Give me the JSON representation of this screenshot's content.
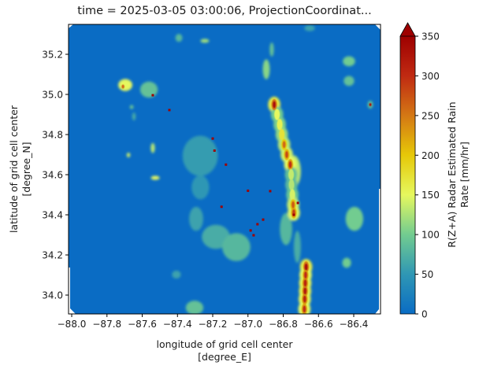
{
  "chart_data": {
    "type": "heatmap",
    "title": "time = 2025-03-05 03:00:06, ProjectionCoordinat...",
    "xlabel": [
      "longitude of grid cell center",
      "[degree_E]"
    ],
    "ylabel": [
      "latitude of grid cell center",
      "[degree_N]"
    ],
    "xlim": [
      -88.018,
      -86.248
    ],
    "ylim": [
      33.906,
      35.349
    ],
    "xticks": [
      -88.0,
      -87.8,
      -87.6,
      -87.4,
      -87.2,
      -87.0,
      -86.8,
      -86.6,
      -86.4
    ],
    "xtick_labels": [
      "−88.0",
      "−87.8",
      "−87.6",
      "−87.4",
      "−87.2",
      "−87.0",
      "−86.8",
      "−86.6",
      "−86.4"
    ],
    "yticks": [
      34.0,
      34.2,
      34.4,
      34.6,
      34.8,
      35.0,
      35.2
    ],
    "ytick_labels": [
      "34.0",
      "34.2",
      "34.4",
      "34.6",
      "34.8",
      "35.0",
      "35.2"
    ],
    "colorbar": {
      "label": [
        "R(Z+A) Radar Estimated Rain",
        "Rate [mm/hr]"
      ],
      "range": [
        0,
        350
      ],
      "extend": "max",
      "ticks": [
        0,
        50,
        100,
        150,
        200,
        250,
        300,
        350
      ],
      "tick_labels": [
        "0",
        "50",
        "100",
        "150",
        "200",
        "250",
        "300",
        "350"
      ],
      "colors": [
        "#0a6cc4",
        "#2f97b4",
        "#72cc90",
        "#e6f85e",
        "#e6c808",
        "#d47814",
        "#c02a12",
        "#9e0000"
      ]
    },
    "background_value": 0,
    "squall_line": [
      [
        -86.851,
        34.949,
        330
      ],
      [
        -86.835,
        34.9,
        200
      ],
      [
        -86.82,
        34.85,
        210
      ],
      [
        -86.808,
        34.8,
        230
      ],
      [
        -86.795,
        34.75,
        260
      ],
      [
        -86.78,
        34.7,
        280
      ],
      [
        -86.76,
        34.65,
        300
      ],
      [
        -86.755,
        34.6,
        180
      ],
      [
        -86.753,
        34.55,
        170
      ],
      [
        -86.748,
        34.5,
        190
      ],
      [
        -86.744,
        34.45,
        270
      ],
      [
        -86.74,
        34.41,
        290
      ],
      [
        -86.67,
        34.14,
        330
      ],
      [
        -86.673,
        34.1,
        300
      ],
      [
        -86.675,
        34.06,
        310
      ],
      [
        -86.676,
        34.02,
        320
      ],
      [
        -86.678,
        33.98,
        310
      ],
      [
        -86.68,
        33.93,
        300
      ]
    ],
    "rain_cells": [
      {
        "lon": -87.696,
        "lat": 35.047,
        "dlon": 0.04,
        "dlat": 0.03,
        "value": 150
      },
      {
        "lon": -87.709,
        "lat": 35.039,
        "dlon": 0.008,
        "dlat": 0.01,
        "value": 260
      },
      {
        "lon": -87.562,
        "lat": 35.024,
        "dlon": 0.05,
        "dlat": 0.04,
        "value": 90
      },
      {
        "lon": -87.392,
        "lat": 35.282,
        "dlon": 0.02,
        "dlat": 0.02,
        "value": 80
      },
      {
        "lon": -87.245,
        "lat": 35.267,
        "dlon": 0.025,
        "dlat": 0.01,
        "value": 120
      },
      {
        "lon": -87.54,
        "lat": 34.733,
        "dlon": 0.012,
        "dlat": 0.025,
        "value": 130
      },
      {
        "lon": -87.678,
        "lat": 34.698,
        "dlon": 0.01,
        "dlat": 0.012,
        "value": 140
      },
      {
        "lon": -87.526,
        "lat": 34.584,
        "dlon": 0.025,
        "dlat": 0.01,
        "value": 150
      },
      {
        "lon": -87.66,
        "lat": 34.937,
        "dlon": 0.01,
        "dlat": 0.01,
        "value": 100
      },
      {
        "lon": -87.647,
        "lat": 34.89,
        "dlon": 0.01,
        "dlat": 0.02,
        "value": 70
      },
      {
        "lon": -87.271,
        "lat": 34.694,
        "dlon": 0.1,
        "dlat": 0.1,
        "value": 55
      },
      {
        "lon": -87.27,
        "lat": 34.537,
        "dlon": 0.05,
        "dlat": 0.06,
        "value": 50
      },
      {
        "lon": -87.294,
        "lat": 34.38,
        "dlon": 0.04,
        "dlat": 0.06,
        "value": 60
      },
      {
        "lon": -87.182,
        "lat": 34.29,
        "dlon": 0.08,
        "dlat": 0.06,
        "value": 70
      },
      {
        "lon": -87.066,
        "lat": 34.239,
        "dlon": 0.08,
        "dlat": 0.07,
        "value": 80
      },
      {
        "lon": -87.303,
        "lat": 33.937,
        "dlon": 0.05,
        "dlat": 0.035,
        "value": 90
      },
      {
        "lon": -87.406,
        "lat": 34.102,
        "dlon": 0.025,
        "dlat": 0.02,
        "value": 60
      },
      {
        "lon": -86.865,
        "lat": 35.224,
        "dlon": 0.012,
        "dlat": 0.035,
        "value": 90
      },
      {
        "lon": -86.896,
        "lat": 35.125,
        "dlon": 0.02,
        "dlat": 0.05,
        "value": 110
      },
      {
        "lon": -86.427,
        "lat": 35.165,
        "dlon": 0.035,
        "dlat": 0.025,
        "value": 100
      },
      {
        "lon": -86.427,
        "lat": 35.067,
        "dlon": 0.03,
        "dlat": 0.025,
        "value": 90
      },
      {
        "lon": -86.306,
        "lat": 34.949,
        "dlon": 0.015,
        "dlat": 0.02,
        "value": 90
      },
      {
        "lon": -86.306,
        "lat": 34.949,
        "dlon": 0.006,
        "dlat": 0.008,
        "value": 330
      },
      {
        "lon": -86.396,
        "lat": 34.38,
        "dlon": 0.05,
        "dlat": 0.06,
        "value": 100
      },
      {
        "lon": -86.44,
        "lat": 34.161,
        "dlon": 0.025,
        "dlat": 0.025,
        "value": 100
      },
      {
        "lon": -86.784,
        "lat": 34.329,
        "dlon": 0.035,
        "dlat": 0.08,
        "value": 80
      },
      {
        "lon": -86.74,
        "lat": 34.616,
        "dlon": 0.04,
        "dlat": 0.08,
        "value": 130
      },
      {
        "lon": -86.65,
        "lat": 35.33,
        "dlon": 0.03,
        "dlat": 0.015,
        "value": 60
      },
      {
        "lon": -86.72,
        "lat": 34.24,
        "dlon": 0.02,
        "dlat": 0.08,
        "value": 70
      }
    ],
    "hot_pixels": [
      [
        -87.446,
        34.922
      ],
      [
        -87.54,
        34.996
      ],
      [
        -87.2,
        34.78
      ],
      [
        -87.19,
        34.72
      ],
      [
        -87.125,
        34.65
      ],
      [
        -86.717,
        34.459
      ],
      [
        -86.74,
        34.4
      ],
      [
        -86.914,
        34.376
      ],
      [
        -86.985,
        34.322
      ],
      [
        -86.968,
        34.298
      ],
      [
        -86.946,
        34.353
      ],
      [
        -86.874,
        34.518
      ],
      [
        -87.0,
        34.52
      ],
      [
        -87.15,
        34.44
      ]
    ]
  }
}
